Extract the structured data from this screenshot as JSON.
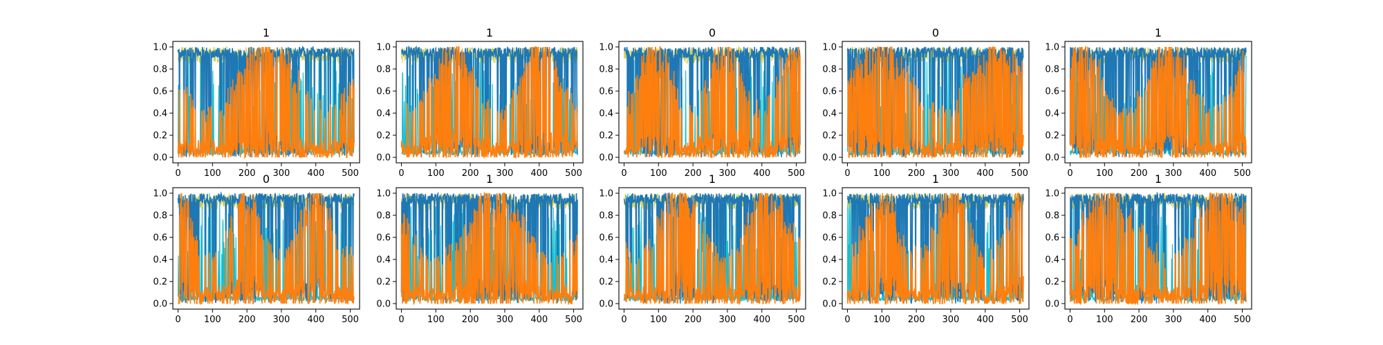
{
  "chart_data": {
    "type": "line",
    "layout": "2x5 grid of small multiples",
    "panels": [
      {
        "title": "1"
      },
      {
        "title": "1"
      },
      {
        "title": "0"
      },
      {
        "title": "0"
      },
      {
        "title": "1"
      },
      {
        "title": "0"
      },
      {
        "title": "1"
      },
      {
        "title": "1"
      },
      {
        "title": "1"
      },
      {
        "title": "1"
      }
    ],
    "xlim": [
      -15,
      527
    ],
    "ylim": [
      -0.05,
      1.05
    ],
    "xticks": [
      0,
      100,
      200,
      300,
      400,
      500
    ],
    "yticks": [
      0.0,
      0.2,
      0.4,
      0.6,
      0.8,
      1.0
    ],
    "xtick_labels": [
      "0",
      "100",
      "200",
      "300",
      "400",
      "500"
    ],
    "ytick_labels": [
      "0.0",
      "0.2",
      "0.4",
      "0.6",
      "0.8",
      "1.0"
    ],
    "grid": false,
    "legend": "none",
    "n_points": 512,
    "series_colors": [
      "#1f77b4",
      "#17becf",
      "#bcbd22",
      "#2ca02c",
      "#9467bd",
      "#ff7f0e"
    ],
    "dominant_series": {
      "blue": "#1f77b4",
      "orange": "#ff7f0e"
    }
  }
}
